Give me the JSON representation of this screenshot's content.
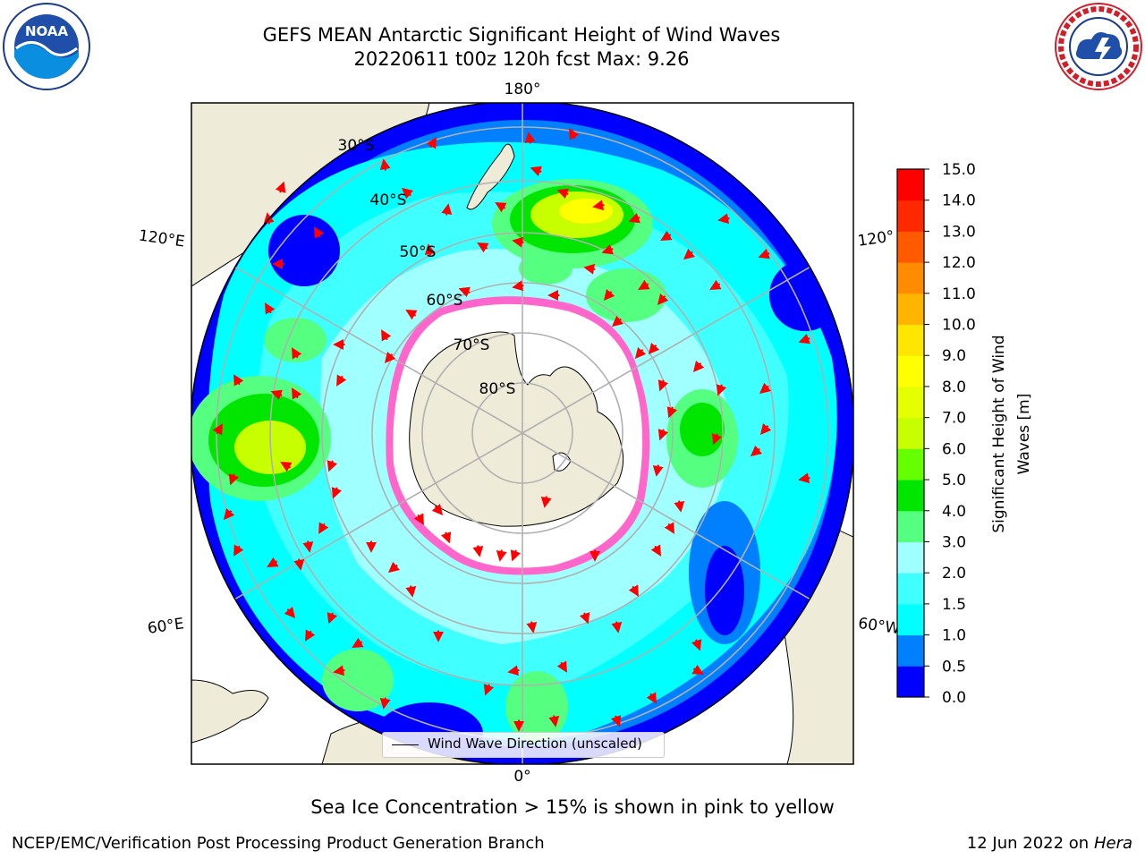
{
  "header": {
    "title_line1": "GEFS MEAN Antarctic Significant Height of Wind Waves",
    "title_line2": "20220611 t00z 120h fcst   Max: 9.26"
  },
  "logos": {
    "left": "NOAA",
    "right": "NATIONAL WEATHER SERVICE"
  },
  "map": {
    "projection": "south-polar-stereographic",
    "longitude_labels": [
      "180°",
      "120°E",
      "120°",
      "60°E",
      "60°W",
      "0°"
    ],
    "latitude_labels": [
      "30°S",
      "40°S",
      "50°S",
      "60°S",
      "70°S",
      "80°S"
    ],
    "legend_label": "Wind Wave Direction (unscaled)",
    "arrow_color": "#ff0000",
    "land_color": "#efebd9",
    "grid_color": "#b0b0b0"
  },
  "colorbar": {
    "label_line1": "Significant Height of Wind",
    "label_line2": "Waves [m]",
    "ticks": [
      "0.0",
      "0.5",
      "1.0",
      "1.5",
      "2.0",
      "3.0",
      "4.0",
      "5.0",
      "6.0",
      "7.0",
      "8.0",
      "9.0",
      "10.0",
      "11.0",
      "12.0",
      "13.0",
      "14.0",
      "15.0"
    ],
    "colors": [
      "#0000ff",
      "#0080ff",
      "#00ffff",
      "#40ffff",
      "#a0ffff",
      "#55ff80",
      "#00e600",
      "#66ff00",
      "#c8ff00",
      "#e6ff00",
      "#ffff00",
      "#ffe600",
      "#ffb400",
      "#ff8c00",
      "#ff5a00",
      "#ff2800",
      "#ff0000"
    ]
  },
  "footer": {
    "ice_note": "Sea Ice Concentration > 15% is shown in pink to yellow",
    "credit": "NCEP/EMC/Verification Post Processing Product Generation Branch",
    "date": "12 Jun 2022 on",
    "machine": "Hera"
  }
}
